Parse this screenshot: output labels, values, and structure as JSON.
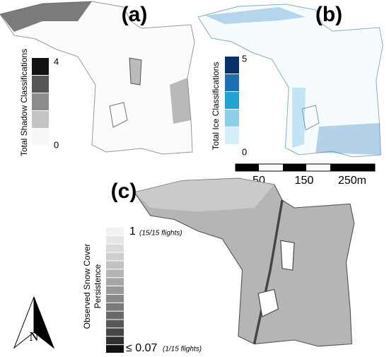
{
  "panels": [
    {
      "label": "(a)",
      "legend_title": "Total Shadow Classifications",
      "max_label": "4",
      "min_label": "0",
      "colors": [
        "#111111",
        "#555555",
        "#8c8c8c",
        "#c4c4c4",
        "#f7f7f7"
      ]
    },
    {
      "label": "(b)",
      "legend_title": "Total Ice Classifications",
      "max_label": "5",
      "min_label": "0",
      "colors": [
        "#08306b",
        "#1a6fb5",
        "#22a3d6",
        "#8dcfe8",
        "#d6eef8"
      ]
    },
    {
      "label": "(c)",
      "legend_title_lines": [
        "Observed Snow Cover",
        "Persistence"
      ],
      "max_label": "1",
      "max_note": "(15/15 flights)",
      "min_label": "≤ 0.07",
      "min_note": "(1/15 flights)",
      "colors": [
        "#f2f2f2",
        "#e6e6e6",
        "#dadada",
        "#cecece",
        "#c1c1c1",
        "#b4b4b4",
        "#a6a6a6",
        "#989898",
        "#898989",
        "#7a7a7a",
        "#696969",
        "#585858",
        "#454545",
        "#303030",
        "#111111"
      ]
    }
  ],
  "scale_bar": {
    "labels": [
      "50",
      "150",
      "250m"
    ]
  },
  "north_arrow": {
    "label": "N"
  }
}
